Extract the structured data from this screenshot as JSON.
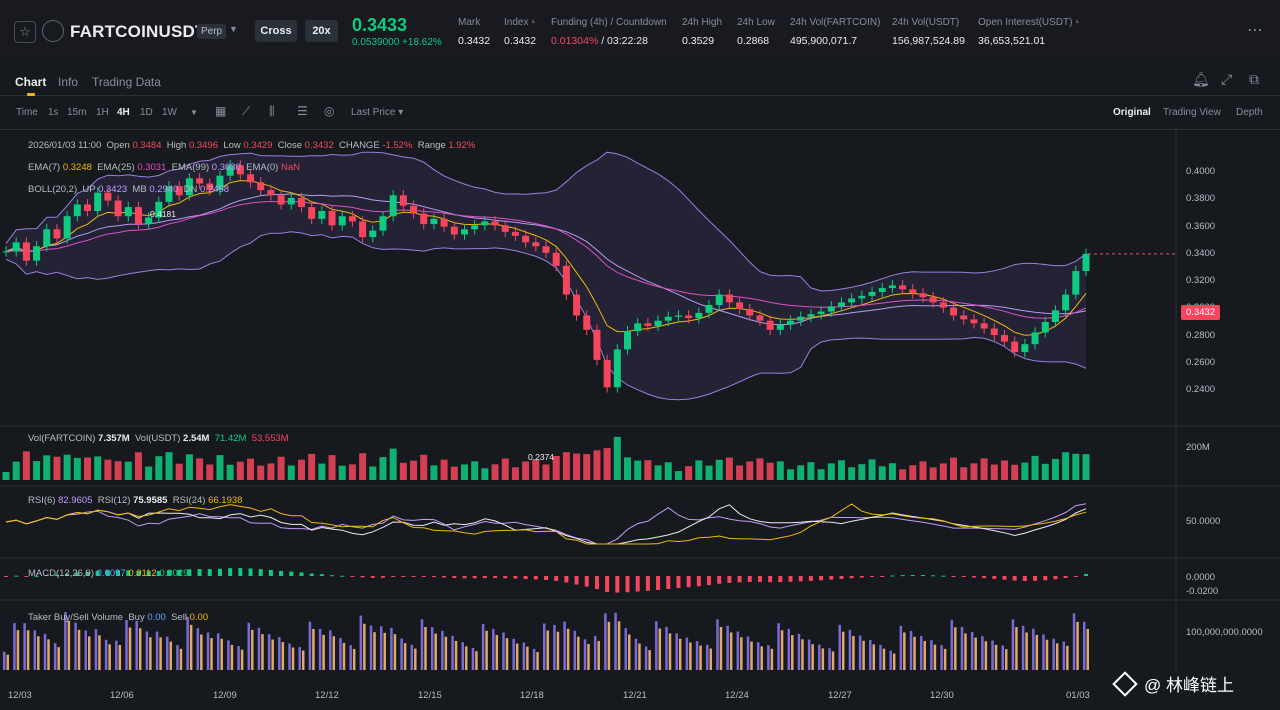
{
  "header": {
    "favorite_icon": "star-icon",
    "symbol": "FARTCOINUSDT",
    "contract_type": "Perp",
    "margin_mode": "Cross",
    "leverage": "20x",
    "last_price": "0.3433",
    "change": "0.0539000 +18.62%",
    "stats": [
      {
        "label": "Mark",
        "value": "0.3432"
      },
      {
        "label": "Index",
        "value": "0.3432"
      },
      {
        "label": "Funding (4h) / Countdown",
        "value_rate": "0.01304%",
        "value_rest": " / 03:22:28"
      },
      {
        "label": "24h High",
        "value": "0.3529"
      },
      {
        "label": "24h Low",
        "value": "0.2868"
      },
      {
        "label": "24h Vol(FARTCOIN)",
        "value": "495,900,071.7"
      },
      {
        "label": "24h Vol(USDT)",
        "value": "156,987,524.89"
      },
      {
        "label": "Open Interest(USDT)",
        "value": "36,653,521.01"
      }
    ],
    "more_icon": "more-dots-icon"
  },
  "tabs": [
    "Chart",
    "Info",
    "Trading Data"
  ],
  "toolbar": {
    "intervals": [
      "Time",
      "1s",
      "15m",
      "1H",
      "4H",
      "1D",
      "1W"
    ],
    "active_interval": "4H",
    "price_type": "Last Price",
    "views": [
      "Original",
      "Trading View",
      "Depth"
    ],
    "active_view": "Original"
  },
  "legend": {
    "ohlc": {
      "date": "2026/01/03 11:00",
      "open_label": "Open",
      "open": "0.3484",
      "high_label": "High",
      "high": "0.3496",
      "low_label": "Low",
      "low": "0.3429",
      "close_label": "Close",
      "close": "0.3432",
      "change_label": "CHANGE",
      "change": "-1.52%",
      "range_label": "Range",
      "range": "1.92%"
    },
    "ema": {
      "ema7_label": "EMA(7)",
      "ema7": "0.3248",
      "ema25_label": "EMA(25)",
      "ema25": "0.3031",
      "ema99_label": "EMA(99)",
      "ema99": "0.3030",
      "ema0_label": "EMA(0)",
      "ema0": "NaN"
    },
    "boll": {
      "label": "BOLL(20,2)",
      "up_label": "UP",
      "up": "0.3423",
      "mb_label": "MB",
      "mb": "0.2940",
      "dn_label": "DN",
      "dn": "0.2458"
    },
    "volume": {
      "label": "Vol(FARTCOIN)",
      "value": "7.357M",
      "usdt_label": "Vol(USDT)",
      "usdt": "2.54M",
      "ma1": "71.42M",
      "ma2": "53.553M"
    },
    "rsi": {
      "rsi6_label": "RSI(6)",
      "rsi6": "82.9605",
      "rsi12_label": "RSI(12)",
      "rsi12": "75.9585",
      "rsi24_label": "RSI(24)",
      "rsi24": "66.1938"
    },
    "macd": {
      "label": "MACD(12,26,9)",
      "dif": "0.0097",
      "dea": "0.0112",
      "hist": "0.0029"
    },
    "taker": {
      "label": "Taker Buy/Sell Volume",
      "buy_label": "Buy",
      "buy": "0.00",
      "sell_label": "Sell",
      "sell": "0.00"
    }
  },
  "axis": {
    "price_ticks": [
      "0.4000",
      "0.3800",
      "0.3600",
      "0.3400",
      "0.3200",
      "0.3000",
      "0.2800",
      "0.2600",
      "0.2400"
    ],
    "current_price_tag": "0.3432",
    "volume_tick": "200M",
    "rsi_tick": "50.0000",
    "macd_ticks": [
      "0.0000",
      "-0.0200"
    ],
    "taker_tick": "100,000,000.0000",
    "dates": [
      "12/03",
      "12/06",
      "12/09",
      "12/12",
      "12/15",
      "12/18",
      "12/21",
      "12/24",
      "12/27",
      "12/30",
      "01/03"
    ]
  },
  "annotations": {
    "low": "0.2374",
    "high": "0.4181"
  },
  "watermark": "@ 林峰链上",
  "colors": {
    "up": "#0ecb81",
    "down": "#f6465d",
    "accent": "#f0b90b",
    "boll": "#9b7fe0",
    "ema7": "#f0b90b",
    "ema25": "#e04ec8"
  },
  "chart_data": {
    "type": "candlestick",
    "series_price_4h_closes": [
      0.345,
      0.352,
      0.338,
      0.349,
      0.362,
      0.355,
      0.372,
      0.381,
      0.376,
      0.39,
      0.384,
      0.372,
      0.379,
      0.366,
      0.371,
      0.383,
      0.395,
      0.388,
      0.401,
      0.397,
      0.392,
      0.403,
      0.411,
      0.404,
      0.398,
      0.392,
      0.388,
      0.381,
      0.386,
      0.379,
      0.37,
      0.376,
      0.365,
      0.372,
      0.368,
      0.356,
      0.361,
      0.372,
      0.388,
      0.38,
      0.374,
      0.366,
      0.37,
      0.364,
      0.358,
      0.362,
      0.365,
      0.368,
      0.365,
      0.36,
      0.357,
      0.352,
      0.349,
      0.344,
      0.334,
      0.312,
      0.296,
      0.285,
      0.262,
      0.241,
      0.27,
      0.284,
      0.29,
      0.288,
      0.292,
      0.295,
      0.296,
      0.294,
      0.298,
      0.304,
      0.312,
      0.306,
      0.301,
      0.296,
      0.292,
      0.285,
      0.289,
      0.292,
      0.295,
      0.297,
      0.299,
      0.303,
      0.306,
      0.309,
      0.311,
      0.314,
      0.317,
      0.319,
      0.316,
      0.313,
      0.31,
      0.306,
      0.302,
      0.296,
      0.293,
      0.29,
      0.286,
      0.281,
      0.276,
      0.268,
      0.274,
      0.283,
      0.291,
      0.3,
      0.312,
      0.33,
      0.3432
    ]
  }
}
